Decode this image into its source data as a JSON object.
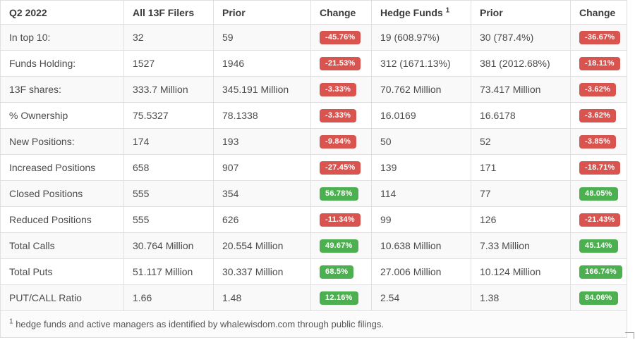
{
  "table": {
    "period_label": "Q2 2022",
    "headers": [
      "Q2 2022",
      "All 13F Filers",
      "Prior",
      "Change",
      "Hedge Funds",
      "Prior",
      "Change"
    ],
    "hedge_funds_superscript": "1",
    "rows": [
      {
        "label": "In top 10:",
        "all_13f": "32",
        "prior_all": "59",
        "change_all": "-45.76%",
        "hedge_funds": "19 (608.97%)",
        "prior_hf": "30 (787.4%)",
        "change_hf": "-36.67%"
      },
      {
        "label": "Funds Holding:",
        "all_13f": "1527",
        "prior_all": "1946",
        "change_all": "-21.53%",
        "hedge_funds": "312 (1671.13%)",
        "prior_hf": "381 (2012.68%)",
        "change_hf": "-18.11%"
      },
      {
        "label": "13F shares:",
        "all_13f": "333.7 Million",
        "prior_all": "345.191 Million",
        "change_all": "-3.33%",
        "hedge_funds": "70.762 Million",
        "prior_hf": "73.417 Million",
        "change_hf": "-3.62%"
      },
      {
        "label": "% Ownership",
        "all_13f": "75.5327",
        "prior_all": "78.1338",
        "change_all": "-3.33%",
        "hedge_funds": "16.0169",
        "prior_hf": "16.6178",
        "change_hf": "-3.62%"
      },
      {
        "label": "New Positions:",
        "all_13f": "174",
        "prior_all": "193",
        "change_all": "-9.84%",
        "hedge_funds": "50",
        "prior_hf": "52",
        "change_hf": "-3.85%"
      },
      {
        "label": "Increased Positions",
        "all_13f": "658",
        "prior_all": "907",
        "change_all": "-27.45%",
        "hedge_funds": "139",
        "prior_hf": "171",
        "change_hf": "-18.71%"
      },
      {
        "label": "Closed Positions",
        "all_13f": "555",
        "prior_all": "354",
        "change_all": "56.78%",
        "hedge_funds": "114",
        "prior_hf": "77",
        "change_hf": "48.05%"
      },
      {
        "label": "Reduced Positions",
        "all_13f": "555",
        "prior_all": "626",
        "change_all": "-11.34%",
        "hedge_funds": "99",
        "prior_hf": "126",
        "change_hf": "-21.43%"
      },
      {
        "label": "Total Calls",
        "all_13f": "30.764 Million",
        "prior_all": "20.554 Million",
        "change_all": "49.67%",
        "hedge_funds": "10.638 Million",
        "prior_hf": "7.33 Million",
        "change_hf": "45.14%"
      },
      {
        "label": "Total Puts",
        "all_13f": "51.117 Million",
        "prior_all": "30.337 Million",
        "change_all": "68.5%",
        "hedge_funds": "27.006 Million",
        "prior_hf": "10.124 Million",
        "change_hf": "166.74%"
      },
      {
        "label": "PUT/CALL Ratio",
        "all_13f": "1.66",
        "prior_all": "1.48",
        "change_all": "12.16%",
        "hedge_funds": "2.54",
        "prior_hf": "1.38",
        "change_hf": "84.06%"
      }
    ],
    "footnote_superscript": "1",
    "footnote": "hedge funds and active managers as identified by whalewisdom.com through public filings."
  },
  "colors": {
    "negative_badge": "#d9534f",
    "positive_badge": "#4caf50",
    "stripe_row": "#f9f9f9",
    "border": "#e0e0e0"
  }
}
